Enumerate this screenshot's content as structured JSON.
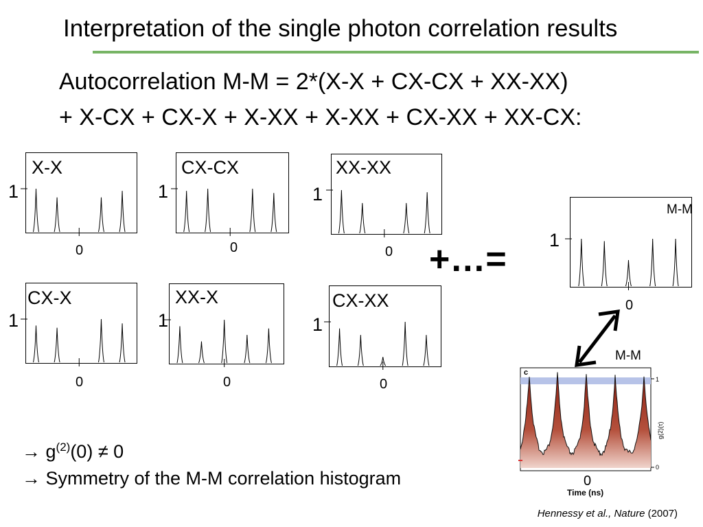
{
  "slide": {
    "title": "Interpretation of the single photon correlation results",
    "equation_line1": "Autocorrelation  M-M  = 2*(X-X + CX-CX + XX-XX)",
    "equation_line2": "+ X-CX + CX-X + X-XX + X-XX + CX-XX + XX-CX:",
    "plus_equals": "+…=",
    "bullet1_text": " g",
    "bullet1_sup": "(2)",
    "bullet1_rest": "(0) ≠ 0",
    "bullet2_text": " Symmetry of the M-M correlation histogram",
    "arrow_glyph": "→",
    "reference_authors": "Hennessy et al., Nature",
    "reference_year": " (2007)"
  },
  "panels": [
    {
      "label": "X-X",
      "one": "1",
      "zero": "0",
      "peaks": [
        1,
        0.8,
        0,
        0.8,
        0.95
      ]
    },
    {
      "label": "CX-CX",
      "one": "1",
      "zero": "0",
      "peaks": [
        0.95,
        1,
        0,
        1,
        0.9
      ]
    },
    {
      "label": "XX-XX",
      "one": "1",
      "zero": "0",
      "peaks": [
        1,
        0.7,
        0,
        0.7,
        0.95
      ]
    },
    {
      "label": "CX-X",
      "one": "1",
      "zero": "0",
      "peaks": [
        0.85,
        0.8,
        0,
        1,
        0.9
      ]
    },
    {
      "label": "XX-X",
      "one": "1",
      "zero": "0",
      "peaks": [
        0.85,
        0.5,
        1,
        0.65,
        0.8
      ]
    },
    {
      "label": "CX-XX",
      "one": "1",
      "zero": "0",
      "peaks": [
        0.85,
        0.7,
        0.2,
        1,
        0.7
      ]
    }
  ],
  "result_panel": {
    "label": "M-M",
    "one": "1",
    "zero": "0",
    "peaks": [
      1,
      0.95,
      0.55,
      1,
      1
    ]
  },
  "experimental": {
    "panel_letter": "c",
    "label": "M-M",
    "zero": "0",
    "xlabel": "Time (ns)",
    "ylabel": "g(2)(τ)",
    "right_tick_top": "1",
    "right_tick_bottom": "0",
    "band_color": "#b7c3e8",
    "fill_color": "#9e2b1a"
  }
}
